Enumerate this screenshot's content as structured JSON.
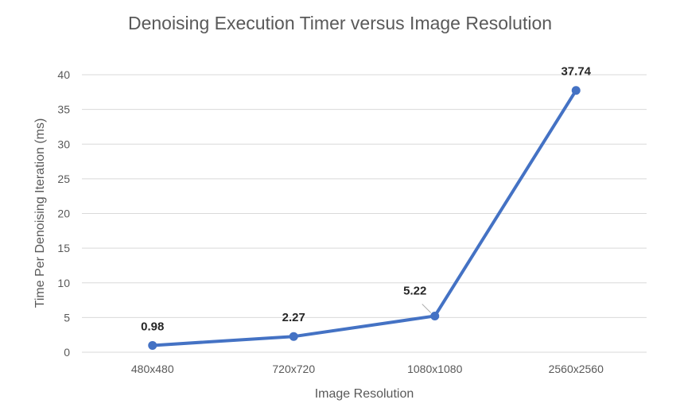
{
  "chart_data": {
    "type": "line",
    "title": "Denoising Execution Timer versus Image Resolution",
    "xlabel": "Image Resolution",
    "ylabel": "Time Per Denoising Iteration (ms)",
    "categories": [
      "480x480",
      "720x720",
      "1080x1080",
      "2560x2560"
    ],
    "series": [
      {
        "values": [
          0.98,
          2.27,
          5.22,
          37.74
        ],
        "labels": [
          "0.98",
          "2.27",
          "5.22",
          "37.74"
        ]
      }
    ],
    "ylim": [
      0,
      40
    ],
    "yticks": [
      0,
      5,
      10,
      15,
      20,
      25,
      30,
      35,
      40
    ],
    "grid": true,
    "legend": "none",
    "line_color": "#4472C4",
    "grid_color": "#D9D9D9"
  }
}
